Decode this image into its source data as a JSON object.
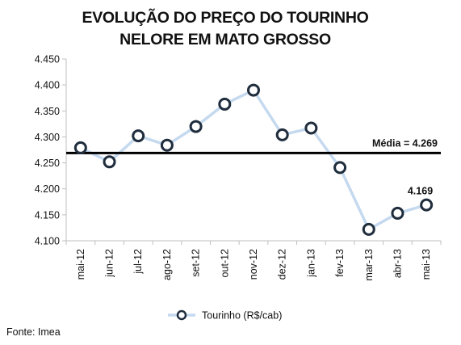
{
  "chart_data": {
    "type": "line",
    "title_lines": [
      "EVOLUÇÃO DO PREÇO DO TOURINHO",
      "NELORE EM MATO GROSSO"
    ],
    "categories": [
      "mai-12",
      "jun-12",
      "jul-12",
      "ago-12",
      "set-12",
      "out-12",
      "nov-12",
      "dez-12",
      "jan-13",
      "fev-13",
      "mar-13",
      "abr-13",
      "mai-13"
    ],
    "series": [
      {
        "name": "Tourinho (R$/cab)",
        "values": [
          4.279,
          4.252,
          4.302,
          4.284,
          4.32,
          4.363,
          4.39,
          4.304,
          4.317,
          4.241,
          4.122,
          4.153,
          4.169
        ]
      }
    ],
    "y_ticks": [
      "4.450",
      "4.400",
      "4.350",
      "4.300",
      "4.250",
      "4.200",
      "4.150",
      "4.100"
    ],
    "ylim": [
      4.1,
      4.45
    ],
    "reference_line": {
      "value": 4.269,
      "label": "Média = 4.269"
    },
    "point_annotation": {
      "index": 12,
      "label": "4.169"
    },
    "legend_position": "bottom",
    "colors": {
      "line": "#c5d9ef",
      "marker_edge": "#1f2d3d",
      "marker_fill": "#ffffff",
      "reference": "#000000",
      "axis": "#bfbfbf"
    }
  },
  "footer": {
    "source": "Fonte: Imea"
  }
}
